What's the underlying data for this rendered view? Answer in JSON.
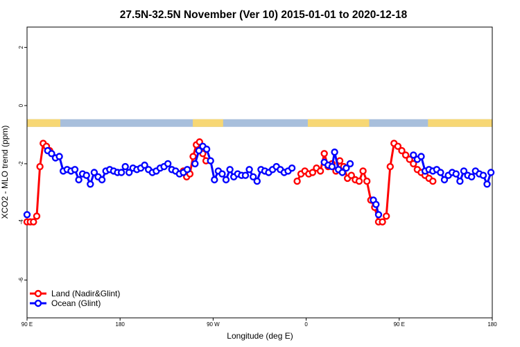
{
  "chart_data": {
    "type": "line",
    "title": "27.5N-32.5N November (Ver 10)   2015-01-01 to 2020-12-18",
    "xlabel": "Longitude (deg E)",
    "ylabel": "XCO2 - MLO trend (ppm)",
    "xlim": [
      90,
      450
    ],
    "ylim": [
      -7.3,
      2.7
    ],
    "x_ticks": [
      {
        "value": 90,
        "label": "90 E"
      },
      {
        "value": 162,
        "label": "180"
      },
      {
        "value": 234,
        "label": "90 W"
      },
      {
        "value": 306,
        "label": "0"
      },
      {
        "value": 378,
        "label": "90 E"
      },
      {
        "value": 450,
        "label": "180"
      }
    ],
    "y_ticks": [
      {
        "value": 2,
        "label": "2"
      },
      {
        "value": 0,
        "label": "0"
      },
      {
        "value": -2,
        "label": "-2"
      },
      {
        "value": -4,
        "label": "-4"
      },
      {
        "value": -6,
        "label": "-6"
      }
    ],
    "grid": false,
    "legend_position": "bottom-left",
    "land_mask": {
      "y": -0.6,
      "land_color": "#f7d774",
      "ocean_color": "#a8bfdc",
      "land_ranges": [
        [
          90,
          116
        ],
        [
          218,
          242
        ],
        [
          307,
          355
        ],
        [
          400,
          450
        ]
      ]
    },
    "series": [
      {
        "name": "Land (Nadir&Glint)",
        "color": "#ff0000",
        "segments": [
          {
            "x": [
              90,
              92.5,
              95,
              97.5,
              100,
              102.5,
              105,
              107.5
            ],
            "y": [
              -4.0,
              -4.0,
              -4.0,
              -3.8,
              -2.1,
              -1.3,
              -1.4,
              -1.55
            ]
          },
          {
            "x": [
              211,
              213.5,
              216,
              218.5,
              221,
              223.5,
              226,
              228.5
            ],
            "y": [
              -2.25,
              -2.45,
              -2.35,
              -1.75,
              -1.35,
              -1.25,
              -1.65,
              -1.9
            ]
          },
          {
            "x": [
              299,
              302,
              305,
              308,
              311,
              314,
              317,
              320,
              323,
              326,
              329,
              332,
              335,
              338,
              341,
              344,
              347,
              350,
              353,
              356,
              359,
              362,
              365,
              368,
              371,
              374,
              377,
              380,
              383,
              386,
              389,
              392,
              395,
              398,
              401,
              404
            ],
            "y": [
              -2.6,
              -2.35,
              -2.25,
              -2.35,
              -2.3,
              -2.15,
              -2.25,
              -1.65,
              -2.1,
              -2.0,
              -2.25,
              -1.9,
              -2.1,
              -2.5,
              -2.4,
              -2.55,
              -2.6,
              -2.25,
              -2.6,
              -3.25,
              -3.5,
              -4.0,
              -4.0,
              -3.8,
              -2.1,
              -1.3,
              -1.4,
              -1.55,
              -1.7,
              -1.85,
              -2.0,
              -2.2,
              -2.3,
              -2.4,
              -2.5,
              -2.6
            ]
          }
        ]
      },
      {
        "name": "Ocean (Glint)",
        "color": "#0000ff",
        "segments": [
          {
            "x": [
              90
            ],
            "y": [
              -3.75
            ]
          },
          {
            "x": [
              106,
              109,
              112,
              115,
              118,
              121,
              124,
              127,
              130,
              133,
              136,
              139,
              142,
              145,
              148,
              151,
              154,
              157,
              160,
              163,
              166,
              169,
              172,
              175,
              178,
              181,
              184,
              187,
              190,
              193,
              196,
              199,
              202,
              205,
              208,
              211,
              214
            ],
            "y": [
              -1.55,
              -1.65,
              -1.8,
              -1.75,
              -2.25,
              -2.2,
              -2.25,
              -2.2,
              -2.55,
              -2.35,
              -2.4,
              -2.7,
              -2.3,
              -2.45,
              -2.55,
              -2.25,
              -2.2,
              -2.25,
              -2.3,
              -2.3,
              -2.1,
              -2.3,
              -2.15,
              -2.2,
              -2.15,
              -2.05,
              -2.2,
              -2.3,
              -2.25,
              -2.15,
              -2.1,
              -2.0,
              -2.2,
              -2.25,
              -2.35,
              -2.3,
              -2.2
            ]
          },
          {
            "x": [
              220,
              223,
              226,
              229,
              232,
              235,
              238,
              241,
              244,
              247,
              250,
              253,
              256,
              259,
              262,
              265,
              268,
              271,
              274,
              277,
              280,
              283,
              286,
              289,
              292,
              295
            ],
            "y": [
              -2.0,
              -1.55,
              -1.4,
              -1.5,
              -1.9,
              -2.55,
              -2.25,
              -2.35,
              -2.55,
              -2.2,
              -2.45,
              -2.35,
              -2.4,
              -2.4,
              -2.2,
              -2.45,
              -2.6,
              -2.2,
              -2.25,
              -2.3,
              -2.2,
              -2.1,
              -2.2,
              -2.3,
              -2.25,
              -2.15
            ]
          },
          {
            "x": [
              320,
              323,
              326,
              328,
              331,
              334,
              337,
              340
            ],
            "y": [
              -1.95,
              -2.05,
              -2.1,
              -1.6,
              -2.2,
              -2.3,
              -2.15,
              -2.0
            ]
          },
          {
            "x": [
              358,
              360,
              362
            ],
            "y": [
              -3.25,
              -3.4,
              -3.75
            ]
          },
          {
            "x": [
              389,
              392,
              395,
              398,
              401,
              404,
              407,
              410,
              413,
              416,
              419,
              422,
              425,
              428,
              431,
              434,
              437,
              440,
              443,
              446,
              449
            ],
            "y": [
              -1.7,
              -1.85,
              -1.75,
              -2.25,
              -2.2,
              -2.25,
              -2.2,
              -2.3,
              -2.55,
              -2.4,
              -2.3,
              -2.35,
              -2.6,
              -2.25,
              -2.4,
              -2.45,
              -2.25,
              -2.35,
              -2.4,
              -2.7,
              -2.3
            ]
          }
        ]
      }
    ]
  }
}
